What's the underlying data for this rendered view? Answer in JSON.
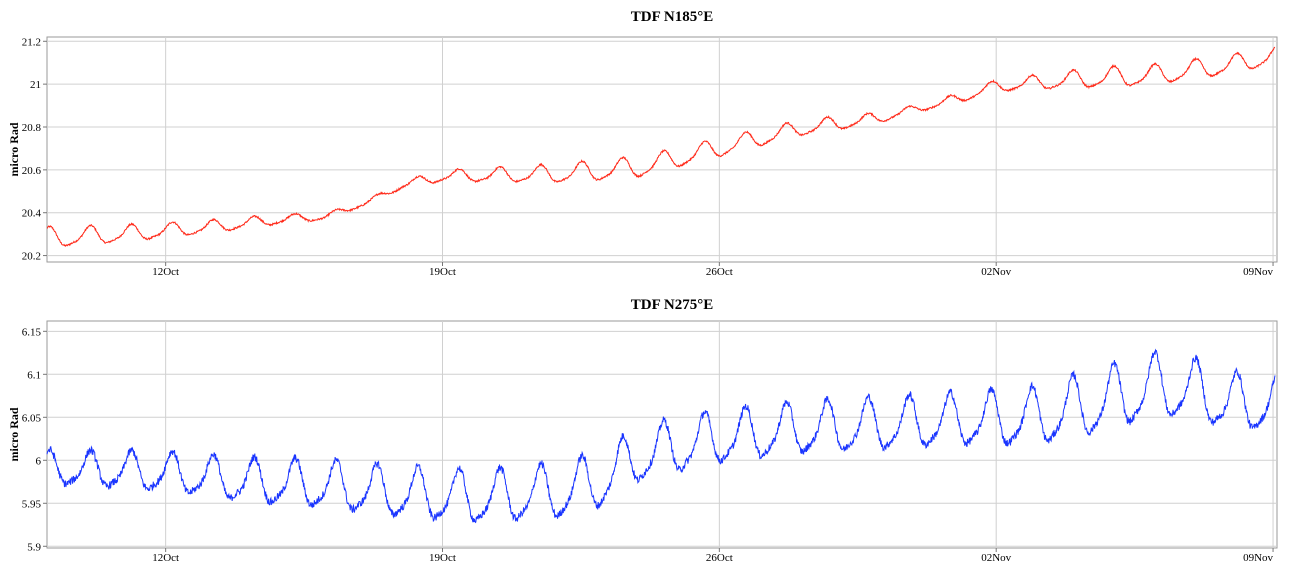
{
  "chart_data": [
    {
      "type": "line",
      "title": "TDF N185°E",
      "ylabel": "micro Rad",
      "xlabel": "",
      "x_range": [
        "2023-10-09",
        "2023-11-09"
      ],
      "ylim": [
        20.17,
        21.22
      ],
      "yticks": [
        20.2,
        20.4,
        20.6,
        20.8,
        21,
        21.2
      ],
      "ytick_labels": [
        "20.2",
        "20.4",
        "20.6",
        "20.8",
        "21",
        "21.2"
      ],
      "xticks": [
        "2023-10-12",
        "2023-10-19",
        "2023-10-26",
        "2023-11-02",
        "2023-11-09"
      ],
      "xtick_labels": [
        "12Oct",
        "19Oct",
        "26Oct",
        "02Nov",
        "09Nov"
      ],
      "grid": true,
      "series": [
        {
          "color": "#ff2a1a",
          "trend": [
            [
              "2023-10-09",
              20.28
            ],
            [
              "2023-10-11",
              20.3
            ],
            [
              "2023-10-13",
              20.33
            ],
            [
              "2023-10-15",
              20.37
            ],
            [
              "2023-10-16",
              20.38
            ],
            [
              "2023-10-17",
              20.44
            ],
            [
              "2023-10-18",
              20.53
            ],
            [
              "2023-10-19",
              20.57
            ],
            [
              "2023-10-22",
              20.58
            ],
            [
              "2023-10-24",
              20.61
            ],
            [
              "2023-10-26",
              20.7
            ],
            [
              "2023-10-28",
              20.79
            ],
            [
              "2023-10-30",
              20.84
            ],
            [
              "2023-11-01",
              20.93
            ],
            [
              "2023-11-02",
              20.99
            ],
            [
              "2023-11-04",
              21.02
            ],
            [
              "2023-11-06",
              21.04
            ],
            [
              "2023-11-08",
              21.09
            ],
            [
              "2023-11-09",
              21.13
            ]
          ],
          "amplitude": [
            [
              "2023-10-09",
              0.045
            ],
            [
              "2023-10-15",
              0.02
            ],
            [
              "2023-10-17",
              0.008
            ],
            [
              "2023-10-19",
              0.025
            ],
            [
              "2023-10-23",
              0.045
            ],
            [
              "2023-10-26",
              0.04
            ],
            [
              "2023-10-29",
              0.03
            ],
            [
              "2023-10-31",
              0.015
            ],
            [
              "2023-11-02",
              0.025
            ],
            [
              "2023-11-05",
              0.045
            ],
            [
              "2023-11-09",
              0.04
            ]
          ]
        }
      ]
    },
    {
      "type": "line",
      "title": "TDF N275°E",
      "ylabel": "micro Rad",
      "xlabel": "",
      "x_range": [
        "2023-10-09",
        "2023-11-09"
      ],
      "ylim": [
        5.898,
        6.162
      ],
      "yticks": [
        5.9,
        5.95,
        6,
        6.05,
        6.1,
        6.15
      ],
      "ytick_labels": [
        "5.9",
        "5.95",
        "6",
        "6.05",
        "6.1",
        "6.15"
      ],
      "xticks": [
        "2023-10-12",
        "2023-10-19",
        "2023-10-26",
        "2023-11-02",
        "2023-11-09"
      ],
      "xtick_labels": [
        "12Oct",
        "19Oct",
        "26Oct",
        "02Nov",
        "09Nov"
      ],
      "grid": true,
      "series": [
        {
          "color": "#1a35ff",
          "trend": [
            [
              "2023-10-09",
              5.99
            ],
            [
              "2023-10-12",
              5.985
            ],
            [
              "2023-10-14",
              5.975
            ],
            [
              "2023-10-16",
              5.97
            ],
            [
              "2023-10-18",
              5.96
            ],
            [
              "2023-10-20",
              5.955
            ],
            [
              "2023-10-22",
              5.962
            ],
            [
              "2023-10-23",
              5.975
            ],
            [
              "2023-10-24",
              6.005
            ],
            [
              "2023-10-26",
              6.025
            ],
            [
              "2023-10-28",
              6.035
            ],
            [
              "2023-10-30",
              6.04
            ],
            [
              "2023-11-01",
              6.045
            ],
            [
              "2023-11-03",
              6.048
            ],
            [
              "2023-11-05",
              6.07
            ],
            [
              "2023-11-06",
              6.085
            ],
            [
              "2023-11-07",
              6.08
            ],
            [
              "2023-11-08",
              6.065
            ],
            [
              "2023-11-09",
              6.065
            ]
          ],
          "amplitude": [
            [
              "2023-10-09",
              0.018
            ],
            [
              "2023-10-15",
              0.025
            ],
            [
              "2023-10-19",
              0.028
            ],
            [
              "2023-10-23",
              0.03
            ],
            [
              "2023-10-27",
              0.028
            ],
            [
              "2023-11-01",
              0.028
            ],
            [
              "2023-11-05",
              0.035
            ],
            [
              "2023-11-09",
              0.03
            ]
          ]
        }
      ]
    }
  ]
}
